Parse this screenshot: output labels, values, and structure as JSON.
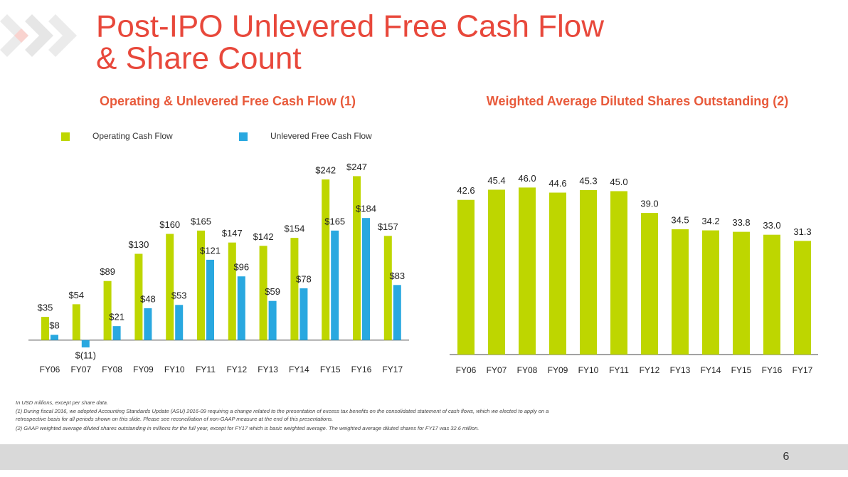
{
  "slide": {
    "title_lines": [
      "Post-IPO Unlevered Free Cash Flow",
      "& Share Count"
    ],
    "footnotes": [
      "In USD millions, except per share data.",
      "(1) During fiscal 2016, we adopted Accounting Standards Update (ASU) 2016-09 requiring a change related to the presentation of excess tax benefits on the consolidated statement of cash flows, which we elected to apply on a",
      "retrospective basis for all periods shown on this slide. Please see reconciliation of non-GAAP measure at the end of this presentations.",
      "(2) GAAP weighted average diluted shares outstanding in millions for the full year, except for FY17 which is basic weighted average. The weighted average diluted shares for FY17 was 32.6 million."
    ],
    "page_number": "6"
  },
  "chart_data": [
    {
      "type": "bar",
      "title": "Operating & Unlevered Free Cash Flow (1)",
      "categories": [
        "FY06",
        "FY07",
        "FY08",
        "FY09",
        "FY10",
        "FY11",
        "FY12",
        "FY13",
        "FY14",
        "FY15",
        "FY16",
        "FY17"
      ],
      "series": [
        {
          "name": "Operating Cash Flow",
          "color": "#bed600",
          "values": [
            35,
            54,
            89,
            130,
            160,
            165,
            147,
            142,
            154,
            242,
            247,
            157
          ],
          "value_labels": [
            "$35",
            "$54",
            "$89",
            "$130",
            "$160",
            "$165",
            "$147",
            "$142",
            "$154",
            "$242",
            "$247",
            "$157"
          ]
        },
        {
          "name": "Unlevered Free Cash Flow",
          "color": "#29a8e0",
          "values": [
            8,
            -11,
            21,
            48,
            53,
            121,
            96,
            59,
            78,
            165,
            184,
            83
          ],
          "value_labels": [
            "$8",
            "$(11)",
            "$21",
            "$48",
            "$53",
            "$121",
            "$96",
            "$59",
            "$78",
            "$165",
            "$184",
            "$83"
          ]
        }
      ],
      "ylim": [
        -25,
        270
      ],
      "legend": "top-left"
    },
    {
      "type": "bar",
      "title": "Weighted Average Diluted Shares Outstanding (2)",
      "categories": [
        "FY06",
        "FY07",
        "FY08",
        "FY09",
        "FY10",
        "FY11",
        "FY12",
        "FY13",
        "FY14",
        "FY15",
        "FY16",
        "FY17"
      ],
      "values": [
        42.6,
        45.4,
        46.0,
        44.6,
        45.3,
        45.0,
        39.0,
        34.5,
        34.2,
        33.8,
        33.0,
        31.3
      ],
      "value_labels": [
        "42.6",
        "45.4",
        "46.0",
        "44.6",
        "45.3",
        "45.0",
        "39.0",
        "34.5",
        "34.2",
        "33.8",
        "33.0",
        "31.3"
      ],
      "color": "#bed600",
      "ylim": [
        0,
        50
      ]
    }
  ]
}
